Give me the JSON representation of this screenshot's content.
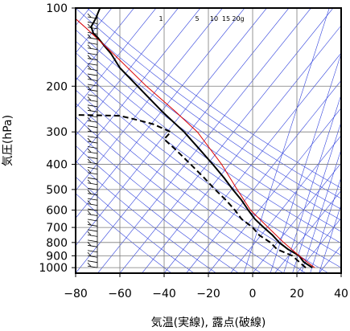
{
  "chart_data": {
    "type": "line",
    "title": "",
    "xlabel": "気温(実線), 露点(破線)",
    "ylabel": "気圧(hPa)",
    "x_unit": "°C",
    "y_unit": "hPa",
    "xlim": [
      -80,
      40
    ],
    "ylim": [
      1050,
      100
    ],
    "y_scale": "log",
    "x_ticks": [
      -80,
      -60,
      -40,
      -20,
      0,
      20,
      40
    ],
    "y_ticks": [
      100,
      200,
      300,
      400,
      500,
      600,
      700,
      800,
      900,
      1000
    ],
    "grid": true,
    "mixing_ratio_labels": [
      "1",
      "5",
      "10",
      "15",
      "20g"
    ],
    "colors": {
      "temperature": "#000000",
      "dewpoint": "#000000",
      "reference_profile": "#dd0000",
      "background_lines": "#3344dd",
      "grid": "#7a7a7a"
    },
    "series": [
      {
        "name": "",
        "style": "solid",
        "points": [
          {
            "p": 1000,
            "t": 27
          },
          {
            "p": 950,
            "t": 23
          },
          {
            "p": 900,
            "t": 21
          },
          {
            "p": 850,
            "t": 16
          },
          {
            "p": 800,
            "t": 12
          },
          {
            "p": 750,
            "t": 9
          },
          {
            "p": 700,
            "t": 5
          },
          {
            "p": 650,
            "t": 1
          },
          {
            "p": 600,
            "t": -2
          },
          {
            "p": 550,
            "t": -5
          },
          {
            "p": 500,
            "t": -9
          },
          {
            "p": 450,
            "t": -13
          },
          {
            "p": 400,
            "t": -18
          },
          {
            "p": 350,
            "t": -24
          },
          {
            "p": 300,
            "t": -31
          },
          {
            "p": 250,
            "t": -41
          },
          {
            "p": 200,
            "t": -52
          },
          {
            "p": 170,
            "t": -60
          },
          {
            "p": 150,
            "t": -64
          },
          {
            "p": 140,
            "t": -67
          },
          {
            "p": 130,
            "t": -70
          },
          {
            "p": 125,
            "t": -72
          },
          {
            "p": 118,
            "t": -73
          },
          {
            "p": 110,
            "t": -71
          },
          {
            "p": 105,
            "t": -70
          },
          {
            "p": 100,
            "t": -69
          }
        ]
      },
      {
        "name": "",
        "style": "dashed",
        "points": [
          {
            "p": 1000,
            "t": 24
          },
          {
            "p": 950,
            "t": 21
          },
          {
            "p": 900,
            "t": 18
          },
          {
            "p": 850,
            "t": 11
          },
          {
            "p": 800,
            "t": 8
          },
          {
            "p": 750,
            "t": 3
          },
          {
            "p": 700,
            "t": 0
          },
          {
            "p": 650,
            "t": -5
          },
          {
            "p": 600,
            "t": -8
          },
          {
            "p": 550,
            "t": -12
          },
          {
            "p": 500,
            "t": -17
          },
          {
            "p": 450,
            "t": -22
          },
          {
            "p": 400,
            "t": -28
          },
          {
            "p": 350,
            "t": -35
          },
          {
            "p": 320,
            "t": -40
          },
          {
            "p": 300,
            "t": -37
          },
          {
            "p": 280,
            "t": -45
          },
          {
            "p": 270,
            "t": -52
          },
          {
            "p": 260,
            "t": -60
          },
          {
            "p": 258,
            "t": -80
          }
        ]
      },
      {
        "name": "",
        "style": "solid-red",
        "points": [
          {
            "p": 1000,
            "t": 28
          },
          {
            "p": 900,
            "t": 21
          },
          {
            "p": 800,
            "t": 14
          },
          {
            "p": 700,
            "t": 7
          },
          {
            "p": 600,
            "t": -1
          },
          {
            "p": 500,
            "t": -7
          },
          {
            "p": 400,
            "t": -14
          },
          {
            "p": 300,
            "t": -25
          },
          {
            "p": 250,
            "t": -35
          },
          {
            "p": 200,
            "t": -48
          },
          {
            "p": 150,
            "t": -63
          },
          {
            "p": 120,
            "t": -75
          },
          {
            "p": 110,
            "t": -80
          }
        ]
      }
    ]
  }
}
